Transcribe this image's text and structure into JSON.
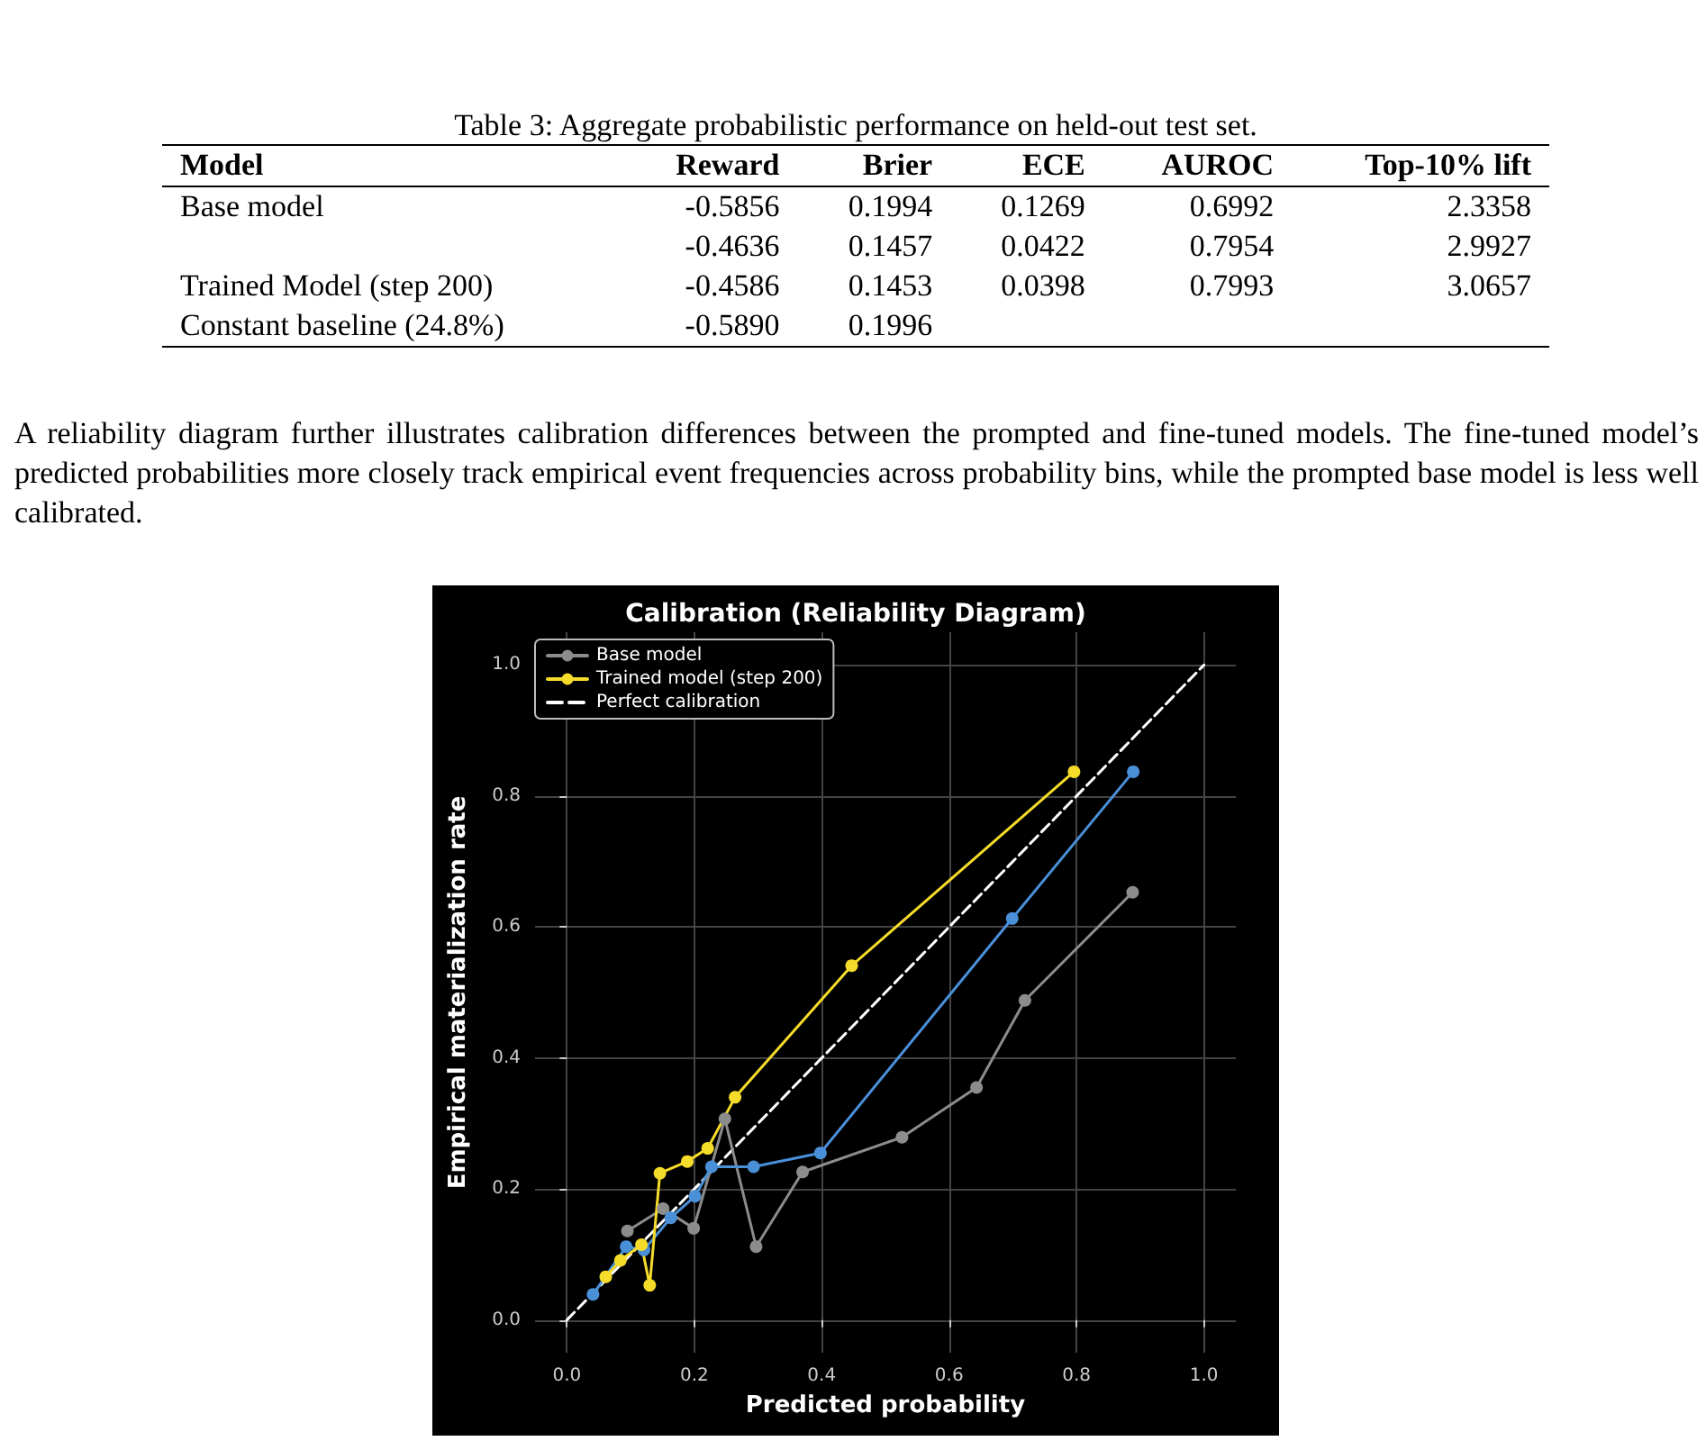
{
  "chart_data": [
    {
      "type": "other",
      "title": "Table 3: Aggregate probabilistic performance on held-out test set.",
      "annotations": [
        "Model\tReward\tBrier\tECE\tAUROC\tTop-10% lift",
        "Base model\t-0.5856\t0.1994\t0.1269\t0.6992\t2.3358",
        "\t-0.4636\t0.1457\t0.0422\t0.7954\t2.9927",
        "Trained Model (step 200)\t-0.4586\t0.1453\t0.0398\t0.7993\t3.0657",
        "Constant baseline (24.8%)\t-0.5890\t0.1996\t\t\t"
      ]
    },
    {
      "type": "line",
      "title": "Calibration (Reliability Diagram)",
      "xlabel": "Predicted probability",
      "ylabel": "Empirical materialization rate",
      "annotations": [
        "A reliability diagram further illustrates calibration differences between the prompted and fine-tuned models. The fine-tuned model’s predicted probabilities more closely track empirical event frequencies across probability bins, while the prompted base model is less well calibrated."
      ],
      "xlim": [
        -0.05,
        1.05
      ],
      "ylim": [
        -0.05,
        1.05
      ],
      "xticks": [
        {
          "value": 0,
          "label": "0.0"
        },
        {
          "value": 0.2,
          "label": "0.2"
        },
        {
          "value": 0.4,
          "label": "0.4"
        },
        {
          "value": 0.6,
          "label": "0.6"
        },
        {
          "value": 0.8,
          "label": "0.8"
        },
        {
          "value": 1,
          "label": "1.0"
        }
      ],
      "yticks": [
        {
          "value": 0,
          "label": "0.0"
        },
        {
          "value": 0.2,
          "label": "0.2"
        },
        {
          "value": 0.4,
          "label": "0.4"
        },
        {
          "value": 0.6,
          "label": "0.6"
        },
        {
          "value": 0.8,
          "label": "0.8"
        },
        {
          "value": 1,
          "label": "1.0"
        }
      ],
      "grid": true,
      "legend": "top left",
      "marker": "circle",
      "series": [
        {
          "name": "Base model",
          "color": "#8c8c8c",
          "x": [
            0.095,
            0.151,
            0.199,
            0.248,
            0.297,
            0.37,
            0.526,
            0.643,
            0.719,
            0.888
          ],
          "values": [
            0.136,
            0.17,
            0.14,
            0.307,
            0.112,
            0.226,
            0.279,
            0.355,
            0.488,
            0.653
          ]
        },
        {
          "color": "#4a90d9",
          "x": [
            0.041,
            0.093,
            0.121,
            0.163,
            0.201,
            0.227,
            0.293,
            0.398,
            0.699,
            0.889
          ],
          "values": [
            0.039,
            0.112,
            0.107,
            0.156,
            0.189,
            0.234,
            0.234,
            0.255,
            0.613,
            0.837
          ]
        },
        {
          "name": "Trained model (step 200)",
          "color": "#f5dc2a",
          "x": [
            0.061,
            0.084,
            0.117,
            0.13,
            0.146,
            0.189,
            0.221,
            0.264,
            0.447,
            0.796
          ],
          "values": [
            0.066,
            0.091,
            0.115,
            0.053,
            0.224,
            0.242,
            0.262,
            0.34,
            0.541,
            0.837
          ]
        },
        {
          "name": "Perfect calibration",
          "color": "#ffffff",
          "x": [
            0,
            1
          ],
          "values": [
            0,
            1
          ],
          "marker": "none",
          "line_style": "dashed"
        }
      ]
    }
  ]
}
